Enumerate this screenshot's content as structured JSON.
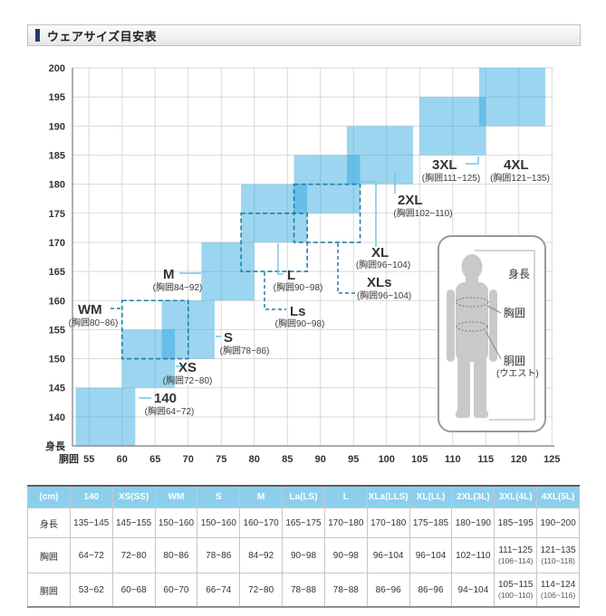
{
  "title": "ウェアサイズ目安表",
  "chart_data": {
    "type": "size-range-grid",
    "title": "ウェアサイズ目安表",
    "xlabel": "胴囲",
    "ylabel": "身長",
    "x_ticks": [
      55,
      60,
      65,
      70,
      75,
      80,
      85,
      90,
      95,
      100,
      105,
      110,
      115,
      120,
      125
    ],
    "y_ticks": [
      140,
      145,
      150,
      155,
      160,
      165,
      170,
      175,
      180,
      185,
      190,
      195,
      200
    ],
    "x_range": [
      52.5,
      125
    ],
    "y_range": [
      135,
      200
    ],
    "grid": true,
    "legend_position": "none",
    "sizes": [
      {
        "name": "140",
        "chest": "(胸囲64~72)",
        "waist": [
          53,
          62
        ],
        "height": [
          135,
          145
        ],
        "style": "solid"
      },
      {
        "name": "XS",
        "chest": "(胸囲72~80)",
        "waist": [
          60,
          68
        ],
        "height": [
          145,
          155
        ],
        "style": "solid"
      },
      {
        "name": "WM",
        "chest": "(胸囲80~86)",
        "waist": [
          60,
          70
        ],
        "height": [
          150,
          160
        ],
        "style": "dashed"
      },
      {
        "name": "S",
        "chest": "(胸囲78~86)",
        "waist": [
          66,
          74
        ],
        "height": [
          150,
          160
        ],
        "style": "solid"
      },
      {
        "name": "M",
        "chest": "(胸囲84~92)",
        "waist": [
          72,
          80
        ],
        "height": [
          160,
          170
        ],
        "style": "solid"
      },
      {
        "name": "Ls",
        "chest": "(胸囲90~98)",
        "waist": [
          78,
          88
        ],
        "height": [
          165,
          175
        ],
        "style": "dashed"
      },
      {
        "name": "L",
        "chest": "(胸囲90~98)",
        "waist": [
          78,
          88
        ],
        "height": [
          170,
          180
        ],
        "style": "solid"
      },
      {
        "name": "XLs",
        "chest": "(胸囲96~104)",
        "waist": [
          86,
          96
        ],
        "height": [
          170,
          180
        ],
        "style": "dashed"
      },
      {
        "name": "XL",
        "chest": "(胸囲96~104)",
        "waist": [
          86,
          96
        ],
        "height": [
          175,
          185
        ],
        "style": "solid"
      },
      {
        "name": "2XL",
        "chest": "(胸囲102~110)",
        "waist": [
          94,
          104
        ],
        "height": [
          180,
          190
        ],
        "style": "solid"
      },
      {
        "name": "3XL",
        "chest": "(胸囲111~125)",
        "waist": [
          105,
          115
        ],
        "height": [
          185,
          195
        ],
        "style": "solid"
      },
      {
        "name": "4XL",
        "chest": "(胸囲121~135)",
        "waist": [
          114,
          124
        ],
        "height": [
          190,
          200
        ],
        "style": "solid"
      }
    ],
    "colors": {
      "block": "#2ea7e0",
      "dashed_outline": "#1d7fa8",
      "leader": "#74c6ea",
      "grid": "#d9d9d9",
      "axis": "#8f8f8f",
      "accent_navy": "#25386b",
      "table_header_bg": "#8bcfed",
      "table_header_text": "#ffffff",
      "silhouette": "#c9c9c9"
    }
  },
  "figure": {
    "height_label": "身長",
    "chest_label": "胸囲",
    "waist_label": "胴囲",
    "waist_sub_label": "(ウエスト)"
  },
  "table": {
    "unit_header": "(cm)",
    "columns": [
      "140",
      "XS(SS)",
      "WM",
      "S",
      "M",
      "La(LS)",
      "L",
      "XLa(LLS)",
      "XL(LL)",
      "2XL(3L)",
      "3XL(4L)",
      "4XL(5L)"
    ],
    "rows": [
      {
        "label": "身長",
        "values": [
          "135~145",
          "145~155",
          "150~160",
          "150~160",
          "160~170",
          "165~175",
          "170~180",
          "170~180",
          "175~185",
          "180~190",
          "185~195",
          "190~200"
        ]
      },
      {
        "label": "胸囲",
        "values": [
          "64~72",
          "72~80",
          "80~86",
          "78~86",
          "84~92",
          "90~98",
          "90~98",
          "96~104",
          "96~104",
          "102~110",
          {
            "main": "111~125",
            "sub": "(106~114)"
          },
          {
            "main": "121~135",
            "sub": "(110~118)"
          }
        ]
      },
      {
        "label": "胴囲",
        "values": [
          "53~62",
          "60~68",
          "60~70",
          "66~74",
          "72~80",
          "78~88",
          "78~88",
          "86~96",
          "86~96",
          "94~104",
          {
            "main": "105~115",
            "sub": "(100~110)"
          },
          {
            "main": "114~124",
            "sub": "(106~116)"
          }
        ]
      }
    ]
  }
}
